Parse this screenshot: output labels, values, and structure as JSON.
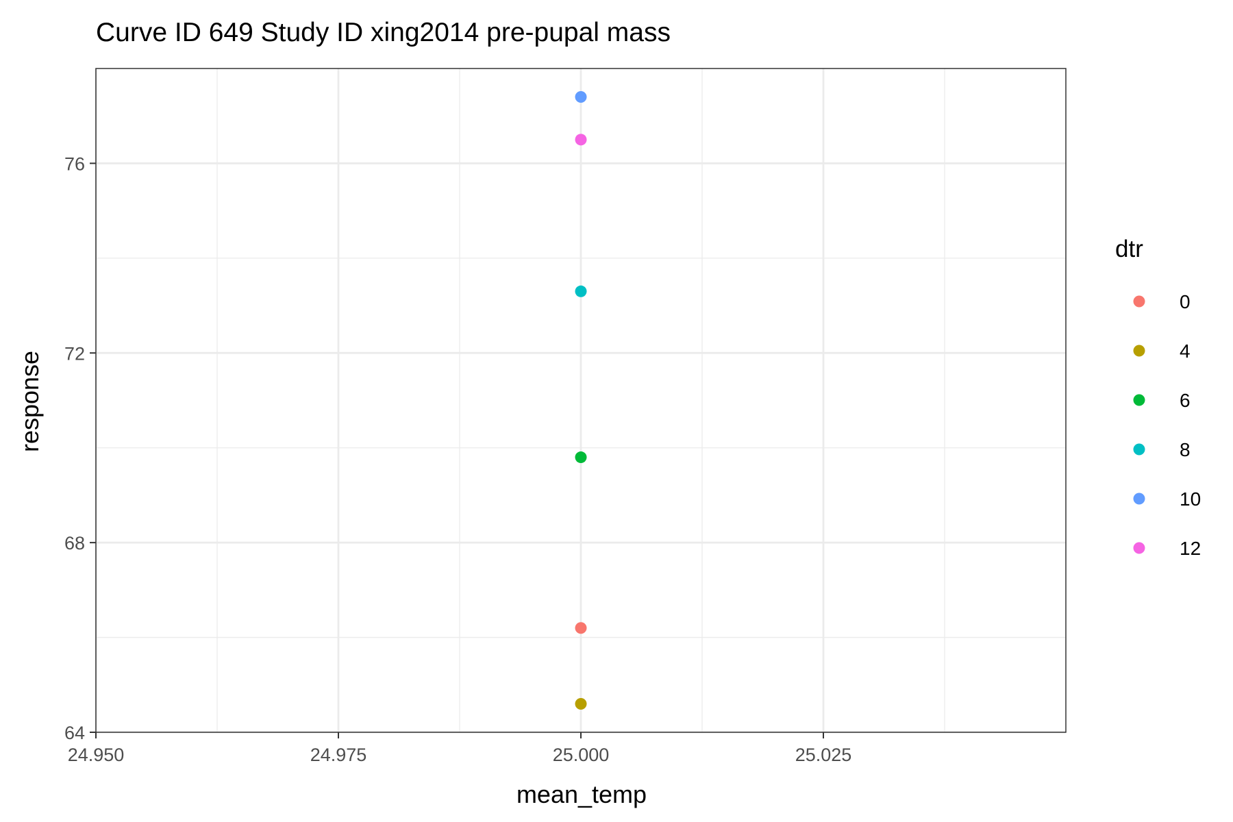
{
  "chart_data": {
    "type": "scatter",
    "title": "Curve ID 649 Study ID xing2014 pre-pupal mass",
    "xlabel": "mean_temp",
    "ylabel": "response",
    "xlim": [
      24.95,
      25.05
    ],
    "ylim": [
      64,
      78
    ],
    "x_ticks": [
      "24.950",
      "24.975",
      "25.000",
      "25.025"
    ],
    "x_tick_values": [
      24.95,
      24.975,
      25.0,
      25.025
    ],
    "y_ticks": [
      "64",
      "68",
      "72",
      "76"
    ],
    "y_tick_values": [
      64,
      68,
      72,
      76
    ],
    "x_minor_values": [
      24.9625,
      24.9875,
      25.0125,
      25.0375
    ],
    "y_minor_values": [
      66,
      70,
      74
    ],
    "grid": true,
    "legend": {
      "title": "dtr",
      "position": "right",
      "entries": [
        {
          "label": "0",
          "color": "#F8766D"
        },
        {
          "label": "4",
          "color": "#B79F00"
        },
        {
          "label": "6",
          "color": "#00BA38"
        },
        {
          "label": "8",
          "color": "#00BFC4"
        },
        {
          "label": "10",
          "color": "#619CFF"
        },
        {
          "label": "12",
          "color": "#F564E3"
        }
      ]
    },
    "series": [
      {
        "name": "0",
        "color": "#F8766D",
        "points": [
          {
            "x": 25.0,
            "y": 66.2
          }
        ]
      },
      {
        "name": "4",
        "color": "#B79F00",
        "points": [
          {
            "x": 25.0,
            "y": 64.6
          }
        ]
      },
      {
        "name": "6",
        "color": "#00BA38",
        "points": [
          {
            "x": 25.0,
            "y": 69.8
          }
        ]
      },
      {
        "name": "8",
        "color": "#00BFC4",
        "points": [
          {
            "x": 25.0,
            "y": 73.3
          }
        ]
      },
      {
        "name": "10",
        "color": "#619CFF",
        "points": [
          {
            "x": 25.0,
            "y": 77.4
          }
        ]
      },
      {
        "name": "12",
        "color": "#F564E3",
        "points": [
          {
            "x": 25.0,
            "y": 76.5
          }
        ]
      }
    ]
  }
}
